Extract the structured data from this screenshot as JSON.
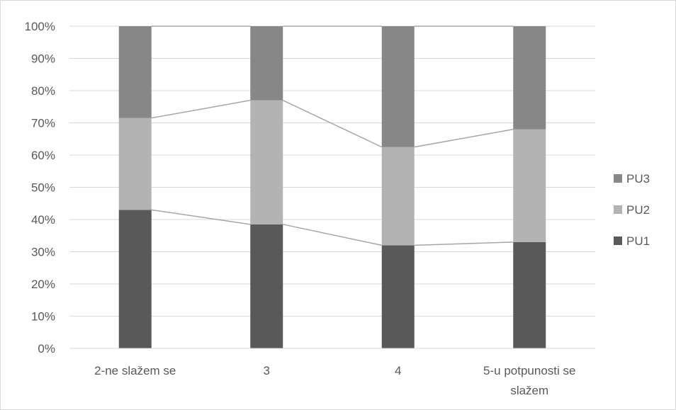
{
  "chart_data": {
    "type": "bar",
    "stacked": true,
    "percent_stacked": true,
    "categories": [
      [
        "2-ne slažem se"
      ],
      [
        "3"
      ],
      [
        "4"
      ],
      [
        "5-u potpunosti se",
        "slažem"
      ]
    ],
    "series": [
      {
        "name": "PU1",
        "values": [
          43,
          38.5,
          32,
          33
        ],
        "color": "#595959"
      },
      {
        "name": "PU2",
        "values": [
          28.5,
          38.5,
          30.5,
          35
        ],
        "color": "#b3b3b3"
      },
      {
        "name": "PU3",
        "values": [
          28.5,
          23,
          37.5,
          32
        ],
        "color": "#878787"
      }
    ],
    "series_lines": true,
    "series_line_color": "#a6a6a6",
    "yticks": [
      "0%",
      "10%",
      "20%",
      "30%",
      "40%",
      "50%",
      "60%",
      "70%",
      "80%",
      "90%",
      "100%"
    ],
    "ylim": [
      0,
      100
    ],
    "grid": true,
    "grid_color": "#d9d9d9",
    "legend": {
      "position": "right",
      "order": [
        "PU3",
        "PU2",
        "PU1"
      ]
    }
  }
}
